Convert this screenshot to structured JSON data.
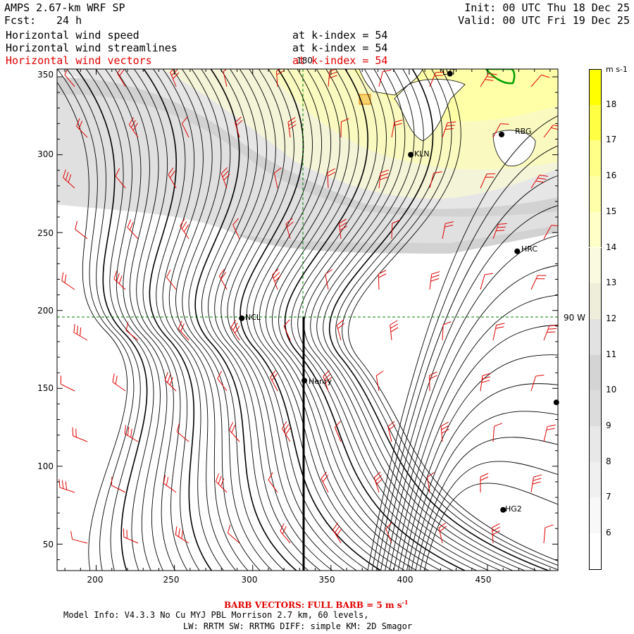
{
  "header": {
    "model_title": "AMPS 2.67-km WRF SP",
    "fcst_label": "Fcst:",
    "fcst_value": "24 h",
    "init": "Init: 00 UTC Thu 18 Dec 25",
    "valid": "Valid: 00 UTC Fri 19 Dec 25",
    "fields": [
      {
        "name": "Horizontal wind speed",
        "level": "at k-index =  54",
        "color": "#000000"
      },
      {
        "name": "Horizontal wind streamlines",
        "level": "at k-index =  54",
        "color": "#000000"
      },
      {
        "name": "Horizontal wind vectors",
        "level": "at k-index =  54",
        "color": "#e00000"
      }
    ]
  },
  "map": {
    "x_ticks": [
      "200",
      "250",
      "300",
      "350",
      "400",
      "450"
    ],
    "y_ticks": [
      "350",
      "300",
      "250",
      "200",
      "150",
      "100",
      "50"
    ],
    "meridian_label": "180",
    "meridian_90_label": "90 W",
    "stations": [
      {
        "id": "LVT",
        "x": 426,
        "y": 352
      },
      {
        "id": "RBG",
        "x": 459,
        "y": 313
      },
      {
        "id": "KLN",
        "x": 401,
        "y": 300
      },
      {
        "id": "HRC",
        "x": 469,
        "y": 238
      },
      {
        "id": "NCL",
        "x": 293,
        "y": 195
      },
      {
        "id": "Henry",
        "x": 333,
        "y": 155
      },
      {
        "id": "",
        "x": 494,
        "y": 141
      },
      {
        "id": "HG2",
        "x": 460,
        "y": 72
      }
    ],
    "colors": {
      "streamline": "#000000",
      "barb": "#e00000",
      "coast": "#00a000",
      "grid": "#008000"
    }
  },
  "colorbar": {
    "units": "m s-1",
    "levels": [
      "18",
      "17",
      "16",
      "15",
      "14",
      "13",
      "12",
      "11",
      "10",
      "9",
      "8",
      "7",
      "6"
    ],
    "colors": [
      "#ffff00",
      "#ffff44",
      "#ffff88",
      "#ffffaa",
      "#ffffc8",
      "#fafae0",
      "#eeeeda",
      "#e2e2e2",
      "#d4d4d4",
      "#dcdcdc",
      "#e8e8e8",
      "#f0f0f0",
      "#f8f8f8",
      "#ffffff"
    ]
  },
  "footer": {
    "barb_note": "BARB VECTORS:  FULL BARB = 5 m s",
    "barb_exp": "-1",
    "model_info_1": "Model Info: V4.3.3   No Cu   MYJ PBL  Morrison        2.7 km,  60 levels,",
    "model_info_2": "LW: RRTM SW: RRTMG   DIFF: simple KM: 2D Smagor"
  }
}
